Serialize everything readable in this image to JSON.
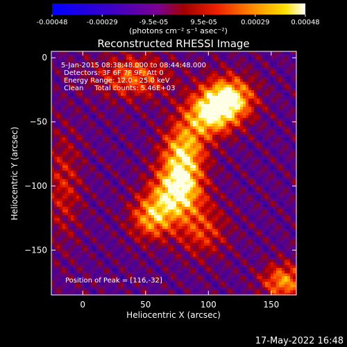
{
  "chart_data": {
    "type": "heatmap",
    "title": "Reconstructed RHESSI Image",
    "xlabel": "Heliocentric X (arcsec)",
    "ylabel": "Heliocentric Y (arcsec)",
    "xlim": [
      -25,
      170
    ],
    "ylim": [
      -185,
      5
    ],
    "xticks": [
      0,
      50,
      100,
      150
    ],
    "yticks": [
      0,
      -50,
      -100,
      -150
    ],
    "colorbar": {
      "min": -0.00048,
      "max": 0.00048,
      "ticks": [
        "-0.00048",
        "-0.00029",
        "-9.5e-05",
        "9.5e-05",
        "0.00029",
        "0.00048"
      ],
      "tick_values": [
        -0.00048,
        -0.00029,
        -9.5e-05,
        9.5e-05,
        0.00029,
        0.00048
      ],
      "units": "(photons cm⁻² s⁻¹ asec⁻²)"
    },
    "annotations": [
      "5-Jan-2015 08:38:48.000 to 08:44:48.000",
      "Detectors: 3F 6F 7F 9F, Att 0",
      "Energy Range: 12.0 - 25.0 keV",
      "Clean     Total counts: 5.46E+03"
    ],
    "peak_text": "Position of Peak = [116,-32]",
    "peak": [
      116,
      -32
    ],
    "sources": [
      {
        "x": 116,
        "y": -32,
        "amp": 1.0,
        "sx": 14,
        "sy": 12
      },
      {
        "x": 100,
        "y": -45,
        "amp": 0.8,
        "sx": 14,
        "sy": 12
      },
      {
        "x": 80,
        "y": -75,
        "amp": 0.85,
        "sx": 12,
        "sy": 16
      },
      {
        "x": 75,
        "y": -105,
        "amp": 0.95,
        "sx": 14,
        "sy": 14
      },
      {
        "x": 55,
        "y": -125,
        "amp": 0.7,
        "sx": 12,
        "sy": 12
      },
      {
        "x": 40,
        "y": -15,
        "amp": 0.55,
        "sx": 20,
        "sy": 12
      },
      {
        "x": 95,
        "y": -135,
        "amp": 0.45,
        "sx": 14,
        "sy": 14
      },
      {
        "x": 160,
        "y": -175,
        "amp": 0.7,
        "sx": 12,
        "sy": 10
      },
      {
        "x": -15,
        "y": -100,
        "amp": 0.35,
        "sx": 10,
        "sy": 30
      }
    ]
  },
  "footer": {
    "date": "17-May-2022 16:48"
  }
}
